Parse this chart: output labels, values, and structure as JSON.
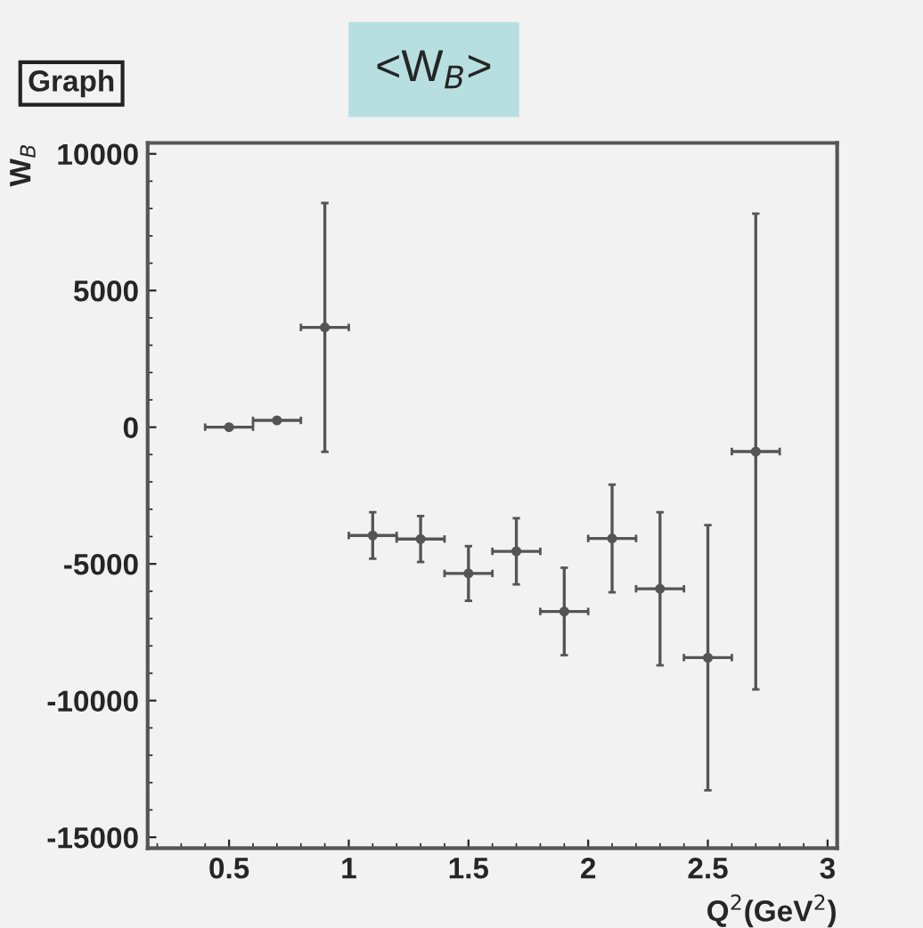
{
  "chart_data": {
    "type": "scatter",
    "title": "<W$_{B}$>",
    "xlabel": "Q$^{2}$(GeV$^{2}$)",
    "ylabel": "W$_{B}$",
    "annotations": [
      "Graph"
    ],
    "x": [
      0.5,
      0.7,
      0.9,
      1.1,
      1.3,
      1.5,
      1.7,
      1.9,
      2.1,
      2.3,
      2.5,
      2.7
    ],
    "series": [
      {
        "color": "#555555",
        "values": [
          0,
          250,
          3650,
          -3960,
          -4090,
          -5350,
          -4540,
          -6740,
          -4070,
          -5910,
          -8430,
          -890
        ],
        "errors": [
          null,
          null,
          4550,
          850,
          840,
          1000,
          1210,
          1600,
          1970,
          2800,
          4850,
          8700
        ],
        "xerrors": [
          0.1,
          0.1,
          0.1,
          0.1,
          0.1,
          0.1,
          0.1,
          0.1,
          0.1,
          0.1,
          0.1,
          0.1
        ]
      }
    ],
    "marker": "circle",
    "xlim": [
      0.16,
      3.04
    ],
    "ylim": [
      -15400,
      10400
    ],
    "xticks": [
      0.5,
      1,
      1.5,
      2,
      2.5,
      3
    ],
    "yticks": [
      -15000,
      -10000,
      -5000,
      0,
      5000,
      10000
    ],
    "grid": false,
    "legend": false
  }
}
